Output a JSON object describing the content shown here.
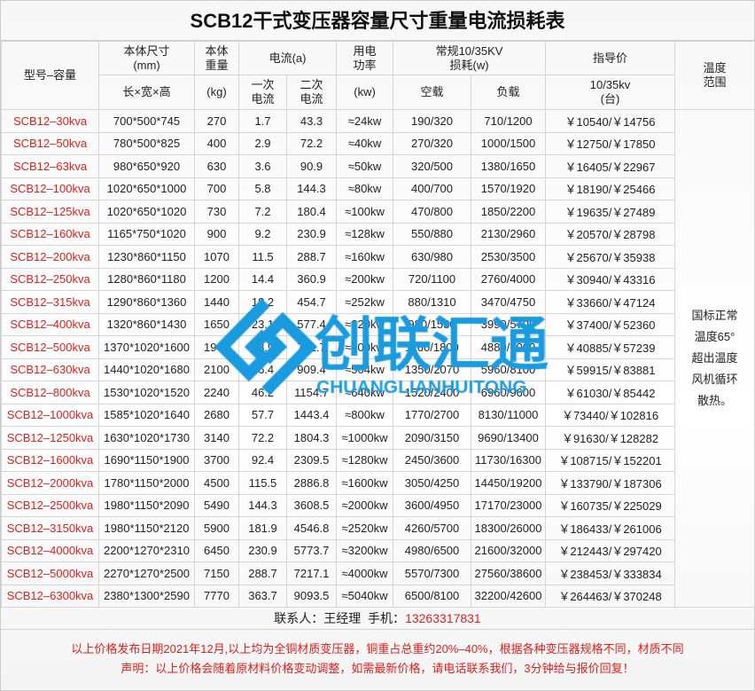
{
  "title": "SCB12干式变压器容量尺寸重量电流损耗表",
  "headers": {
    "model": "型号–容量",
    "size": "本体尺寸\n(mm)",
    "size_sub": "长×宽×高",
    "weight": "本体\n重量",
    "weight_sub": "(kg)",
    "current": "电流(a)",
    "current_primary": "一次\n电流",
    "current_secondary": "二次\n电流",
    "power": "用电\n功率",
    "power_sub": "(kw)",
    "loss": "常规10/35KV\n损耗(w)",
    "loss_noload": "空载",
    "loss_load": "负载",
    "price": "指导价",
    "price_sub": "10/35kv\n(台)",
    "temp": "温度\n范围"
  },
  "rows": [
    [
      "SCB12–30kva",
      "700*500*745",
      "270",
      "1.7",
      "43.3",
      "≈24kw",
      "190/320",
      "710/1200",
      "￥10540/￥14756"
    ],
    [
      "SCB12–50kva",
      "780*500*825",
      "400",
      "2.9",
      "72.2",
      "≈40kw",
      "270/320",
      "1000/1500",
      "￥12750/￥17850"
    ],
    [
      "SCB12–63kva",
      "980*650*920",
      "630",
      "3.6",
      "90.9",
      "≈50kw",
      "320/500",
      "1380/1650",
      "￥16405/￥22967"
    ],
    [
      "SCB12–100kva",
      "1020*650*1000",
      "700",
      "5.8",
      "144.3",
      "≈80kw",
      "400/700",
      "1570/1920",
      "￥18190/￥25466"
    ],
    [
      "SCB12–125kva",
      "1020*650*1020",
      "730",
      "7.2",
      "180.4",
      "≈100kw",
      "470/800",
      "1850/2200",
      "￥19635/￥27489"
    ],
    [
      "SCB12–160kva",
      "1165*750*1020",
      "900",
      "9.2",
      "230.9",
      "≈128kw",
      "550/880",
      "2130/2960",
      "￥20570/￥28798"
    ],
    [
      "SCB12–200kva",
      "1230*860*1150",
      "1070",
      "11.5",
      "288.7",
      "≈160kw",
      "630/980",
      "2530/3500",
      "￥25670/￥35938"
    ],
    [
      "SCB12–250kva",
      "1280*860*1180",
      "1200",
      "14.4",
      "360.9",
      "≈200kw",
      "720/1100",
      "2760/4000",
      "￥30940/￥43316"
    ],
    [
      "SCB12–315kva",
      "1290*860*1360",
      "1440",
      "18.2",
      "454.7",
      "≈252kw",
      "880/1310",
      "3470/4750",
      "￥33660/￥47124"
    ],
    [
      "SCB12–400kva",
      "1320*860*1430",
      "1650",
      "23.1",
      "577.4",
      "≈320kw",
      "980/1530",
      "3990/5700",
      "￥37400/￥52360"
    ],
    [
      "SCB12–500kva",
      "1370*1020*1600",
      "1940",
      "28.9",
      "721.7",
      "≈400kw",
      "1160/1800",
      "4880/7000",
      "￥40885/￥57239"
    ],
    [
      "SCB12–630kva",
      "1440*1020*1680",
      "2100",
      "36.4",
      "909.4",
      "≈504kw",
      "1350/2070",
      "5960/8100",
      "￥59915/￥83881"
    ],
    [
      "SCB12–800kva",
      "1530*1020*1520",
      "2240",
      "46.2",
      "1154.7",
      "≈640kw",
      "1520/2400",
      "6960/9600",
      "￥61030/￥85442"
    ],
    [
      "SCB12–1000kva",
      "1585*1020*1640",
      "2680",
      "57.7",
      "1443.4",
      "≈800kw",
      "1770/2700",
      "8130/11000",
      "￥73440/￥102816"
    ],
    [
      "SCB12–1250kva",
      "1630*1020*1730",
      "3140",
      "72.2",
      "1804.3",
      "≈1000kw",
      "2090/3150",
      "9690/13400",
      "￥91630/￥128282"
    ],
    [
      "SCB12–1600kva",
      "1690*1150*1900",
      "3700",
      "92.4",
      "2309.5",
      "≈1280kw",
      "2450/3600",
      "11730/16300",
      "￥108715/￥152201"
    ],
    [
      "SCB12–2000kva",
      "1780*1150*2000",
      "4500",
      "115.5",
      "2886.8",
      "≈1600kw",
      "3050/4250",
      "14450/19200",
      "￥133790/￥187306"
    ],
    [
      "SCB12–2500kva",
      "1980*1150*2090",
      "5490",
      "144.3",
      "3608.5",
      "≈2000kw",
      "3600/4950",
      "17170/23000",
      "￥160735/￥225029"
    ],
    [
      "SCB12–3150kva",
      "1980*1150*2120",
      "5900",
      "181.9",
      "4546.8",
      "≈2520kw",
      "4260/5700",
      "18300/26000",
      "￥186433/￥261006"
    ],
    [
      "SCB12–4000kva",
      "2200*1270*2310",
      "6450",
      "230.9",
      "5773.7",
      "≈3200kw",
      "4980/6500",
      "21600/32000",
      "￥212443/￥297420"
    ],
    [
      "SCB12–5000kva",
      "2270*1270*2500",
      "7150",
      "288.7",
      "7217.1",
      "≈4000kw",
      "5570/7300",
      "27560/38600",
      "￥238453/￥333834"
    ],
    [
      "SCB12–6300kva",
      "2380*1300*2590",
      "7770",
      "363.7",
      "9093.5",
      "≈5040kw",
      "6500/8100",
      "32200/42600",
      "￥264463/￥370248"
    ]
  ],
  "temp_note": "国标正常\n温度65°\n超出温度\n风机循环\n散热。",
  "contact": {
    "label": "联系人：王经理  手机：",
    "phone": "13263317831"
  },
  "notes": [
    "以上价格发布日期2021年12月,以上均为全铜材质变压器，铜重占总重约20%–40%，根据各种变压器规格不同，材质不同",
    "声明：以上价格会随着原材料价格变动调整，如需最新价格，请电话联系我们，3分钟给与报价回复！"
  ],
  "watermark": {
    "cn": "创联汇通",
    "en": "CHUANGLIANHUITONG",
    "color": "#1a9be0"
  },
  "colors": {
    "accent_red": "#e0201c"
  }
}
